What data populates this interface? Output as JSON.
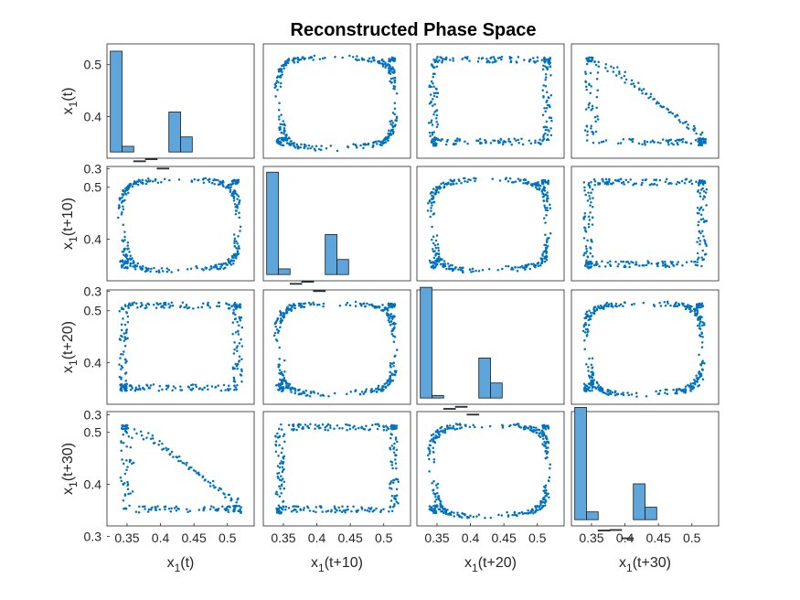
{
  "chart_data": {
    "type": "scatter",
    "layout": "scatter-matrix",
    "title": "Reconstructed Phase Space",
    "variables": [
      "x_1(t)",
      "x_1(t+10)",
      "x_1(t+20)",
      "x_1(t+30)"
    ],
    "variable_labels": [
      {
        "base": "x",
        "sub": "1",
        "suffix": "(t)"
      },
      {
        "base": "x",
        "sub": "1",
        "suffix": "(t+10)"
      },
      {
        "base": "x",
        "sub": "1",
        "suffix": "(t+20)"
      },
      {
        "base": "x",
        "sub": "1",
        "suffix": "(t+30)"
      }
    ],
    "axis_range": [
      0.32,
      0.54
    ],
    "xticks": [
      "0.35",
      "0.4",
      "0.45",
      "0.5"
    ],
    "yticks": [
      "0.3",
      "0.4",
      "0.5"
    ],
    "marker_color": "#0072BD",
    "bar_color": "#5DA5DA",
    "bar_edge_color": "#1a1a1a",
    "grid": false,
    "diagonal_histograms": [
      {
        "variable": "x_1(t)",
        "bin_edges": [
          0.325,
          0.3425,
          0.36,
          0.3775,
          0.395,
          0.4125,
          0.43,
          0.4475
        ],
        "values": [
          0.526,
          0.343,
          0.315,
          0.319,
          0.301,
          0.409,
          0.361
        ]
      },
      {
        "variable": "x_1(t+10)",
        "bin_edges": [
          0.325,
          0.3425,
          0.36,
          0.3775,
          0.395,
          0.4125,
          0.43,
          0.4475
        ],
        "values": [
          0.529,
          0.343,
          0.315,
          0.319,
          0.301,
          0.409,
          0.361
        ]
      },
      {
        "variable": "x_1(t+20)",
        "bin_edges": [
          0.325,
          0.3425,
          0.36,
          0.3775,
          0.395,
          0.4125,
          0.43,
          0.4475
        ],
        "values": [
          0.545,
          0.337,
          0.312,
          0.316,
          0.301,
          0.409,
          0.361
        ]
      },
      {
        "variable": "x_1(t+30)",
        "bin_edges": [
          0.325,
          0.3425,
          0.36,
          0.3775,
          0.395,
          0.4125,
          0.43,
          0.4475
        ],
        "values": [
          0.548,
          0.347,
          0.312,
          0.313,
          0.297,
          0.401,
          0.356
        ]
      }
    ],
    "offdiagonal_panels": [
      {
        "row": 0,
        "col": 1,
        "shape": "loop"
      },
      {
        "row": 0,
        "col": 2,
        "shape": "rectangle"
      },
      {
        "row": 0,
        "col": 3,
        "shape": "triangle"
      },
      {
        "row": 1,
        "col": 0,
        "shape": "loop"
      },
      {
        "row": 1,
        "col": 2,
        "shape": "loop"
      },
      {
        "row": 1,
        "col": 3,
        "shape": "rectangle"
      },
      {
        "row": 2,
        "col": 0,
        "shape": "rectangle"
      },
      {
        "row": 2,
        "col": 1,
        "shape": "loop"
      },
      {
        "row": 2,
        "col": 3,
        "shape": "loop"
      },
      {
        "row": 3,
        "col": 0,
        "shape": "triangle"
      },
      {
        "row": 3,
        "col": 1,
        "shape": "rectangle"
      },
      {
        "row": 3,
        "col": 2,
        "shape": "loop"
      }
    ]
  }
}
